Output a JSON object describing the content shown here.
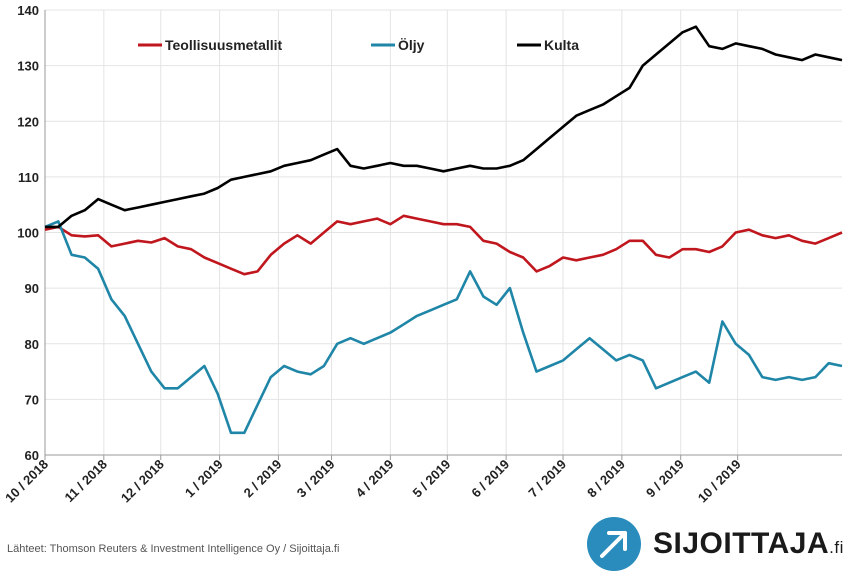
{
  "chart_data": {
    "type": "line",
    "title": "",
    "xlabel": "",
    "ylabel": "",
    "ylim": [
      60,
      140
    ],
    "yticks": [
      60,
      70,
      80,
      90,
      100,
      110,
      120,
      130,
      140
    ],
    "xticks": [
      "10 / 2018",
      "11 / 2018",
      "12 / 2018",
      "1 / 2019",
      "2 / 2019",
      "3 / 2019",
      "4 / 2019",
      "5 / 2019",
      "6 / 2019",
      "7 / 2019",
      "8 / 2019",
      "9 / 2019",
      "10 / 2019"
    ],
    "grid": true,
    "legend_position": "top",
    "x": [
      "2018-10-01",
      "2018-10-08",
      "2018-10-15",
      "2018-10-22",
      "2018-10-29",
      "2018-11-05",
      "2018-11-12",
      "2018-11-19",
      "2018-11-26",
      "2018-12-03",
      "2018-12-10",
      "2018-12-17",
      "2018-12-24",
      "2018-12-31",
      "2019-01-07",
      "2019-01-14",
      "2019-01-21",
      "2019-01-28",
      "2019-02-04",
      "2019-02-11",
      "2019-02-18",
      "2019-02-25",
      "2019-03-04",
      "2019-03-11",
      "2019-03-18",
      "2019-03-25",
      "2019-04-01",
      "2019-04-08",
      "2019-04-15",
      "2019-04-22",
      "2019-04-29",
      "2019-05-06",
      "2019-05-13",
      "2019-05-20",
      "2019-05-27",
      "2019-06-03",
      "2019-06-10",
      "2019-06-17",
      "2019-06-24",
      "2019-07-01",
      "2019-07-08",
      "2019-07-15",
      "2019-07-22",
      "2019-07-29",
      "2019-08-05",
      "2019-08-12",
      "2019-08-19",
      "2019-08-26",
      "2019-09-02",
      "2019-09-09",
      "2019-09-16",
      "2019-09-23",
      "2019-09-30",
      "2019-10-07",
      "2019-10-14",
      "2019-10-21",
      "2019-10-28",
      "2019-11-04",
      "2019-11-11",
      "2019-11-18",
      "2019-11-25"
    ],
    "series": [
      {
        "name": "Teollisuusmetallit",
        "color": "#c0161d",
        "values": [
          100.5,
          101,
          99.5,
          99.3,
          99.5,
          97.5,
          98,
          98.5,
          98.2,
          99,
          97.5,
          97,
          95.5,
          94.5,
          93.5,
          92.5,
          93,
          96,
          98,
          99.5,
          98,
          100,
          102,
          101.5,
          102,
          102.5,
          101.5,
          103,
          102.5,
          102,
          101.5,
          101.5,
          101,
          98.5,
          98,
          96.5,
          95.5,
          93,
          94,
          95.5,
          95,
          95.5,
          96,
          97,
          98.5,
          98.5,
          96,
          95.5,
          97,
          97,
          96.5,
          97.5,
          100,
          100.5,
          99.5,
          99,
          99.5,
          98.5,
          98,
          99,
          100
        ]
      },
      {
        "name": "Öljy",
        "color": "#1f86a8",
        "values": [
          101,
          102,
          96,
          95.5,
          93.5,
          88,
          85,
          80,
          75,
          72,
          72,
          74,
          76,
          71,
          64,
          64,
          69,
          74,
          76,
          75,
          74.5,
          76,
          80,
          81,
          80,
          81,
          82,
          83.5,
          85,
          86,
          87,
          88,
          93,
          88.5,
          87,
          90,
          82,
          75,
          76,
          77,
          79,
          81,
          79,
          77,
          78,
          77,
          72,
          73,
          74,
          75,
          73,
          84,
          80,
          78,
          74,
          73.5,
          74,
          73.5,
          74,
          76.5,
          76
        ]
      },
      {
        "name": "Kulta",
        "color": "#000000",
        "values": [
          101,
          101,
          103,
          104,
          106,
          105,
          104,
          104.5,
          105,
          105.5,
          106,
          106.5,
          107,
          108,
          109.5,
          110,
          110.5,
          111,
          112,
          112.5,
          113,
          114,
          115,
          112,
          111.5,
          112,
          112.5,
          112,
          112,
          111.5,
          111,
          111.5,
          112,
          111.5,
          111.5,
          112,
          113,
          115,
          117,
          119,
          121,
          122,
          123,
          124.5,
          126,
          130,
          132,
          134,
          136,
          137,
          133.5,
          133,
          134,
          133.5,
          133,
          132,
          131.5,
          131,
          132,
          131.5,
          131
        ]
      }
    ]
  },
  "source_text": "Lähteet: Thomson Reuters & Investment Intelligence Oy / Sijoittaja.fi",
  "logo": {
    "name": "SIJOITTAJA",
    "suffix": ".fi",
    "color": "#2a8cbc"
  }
}
